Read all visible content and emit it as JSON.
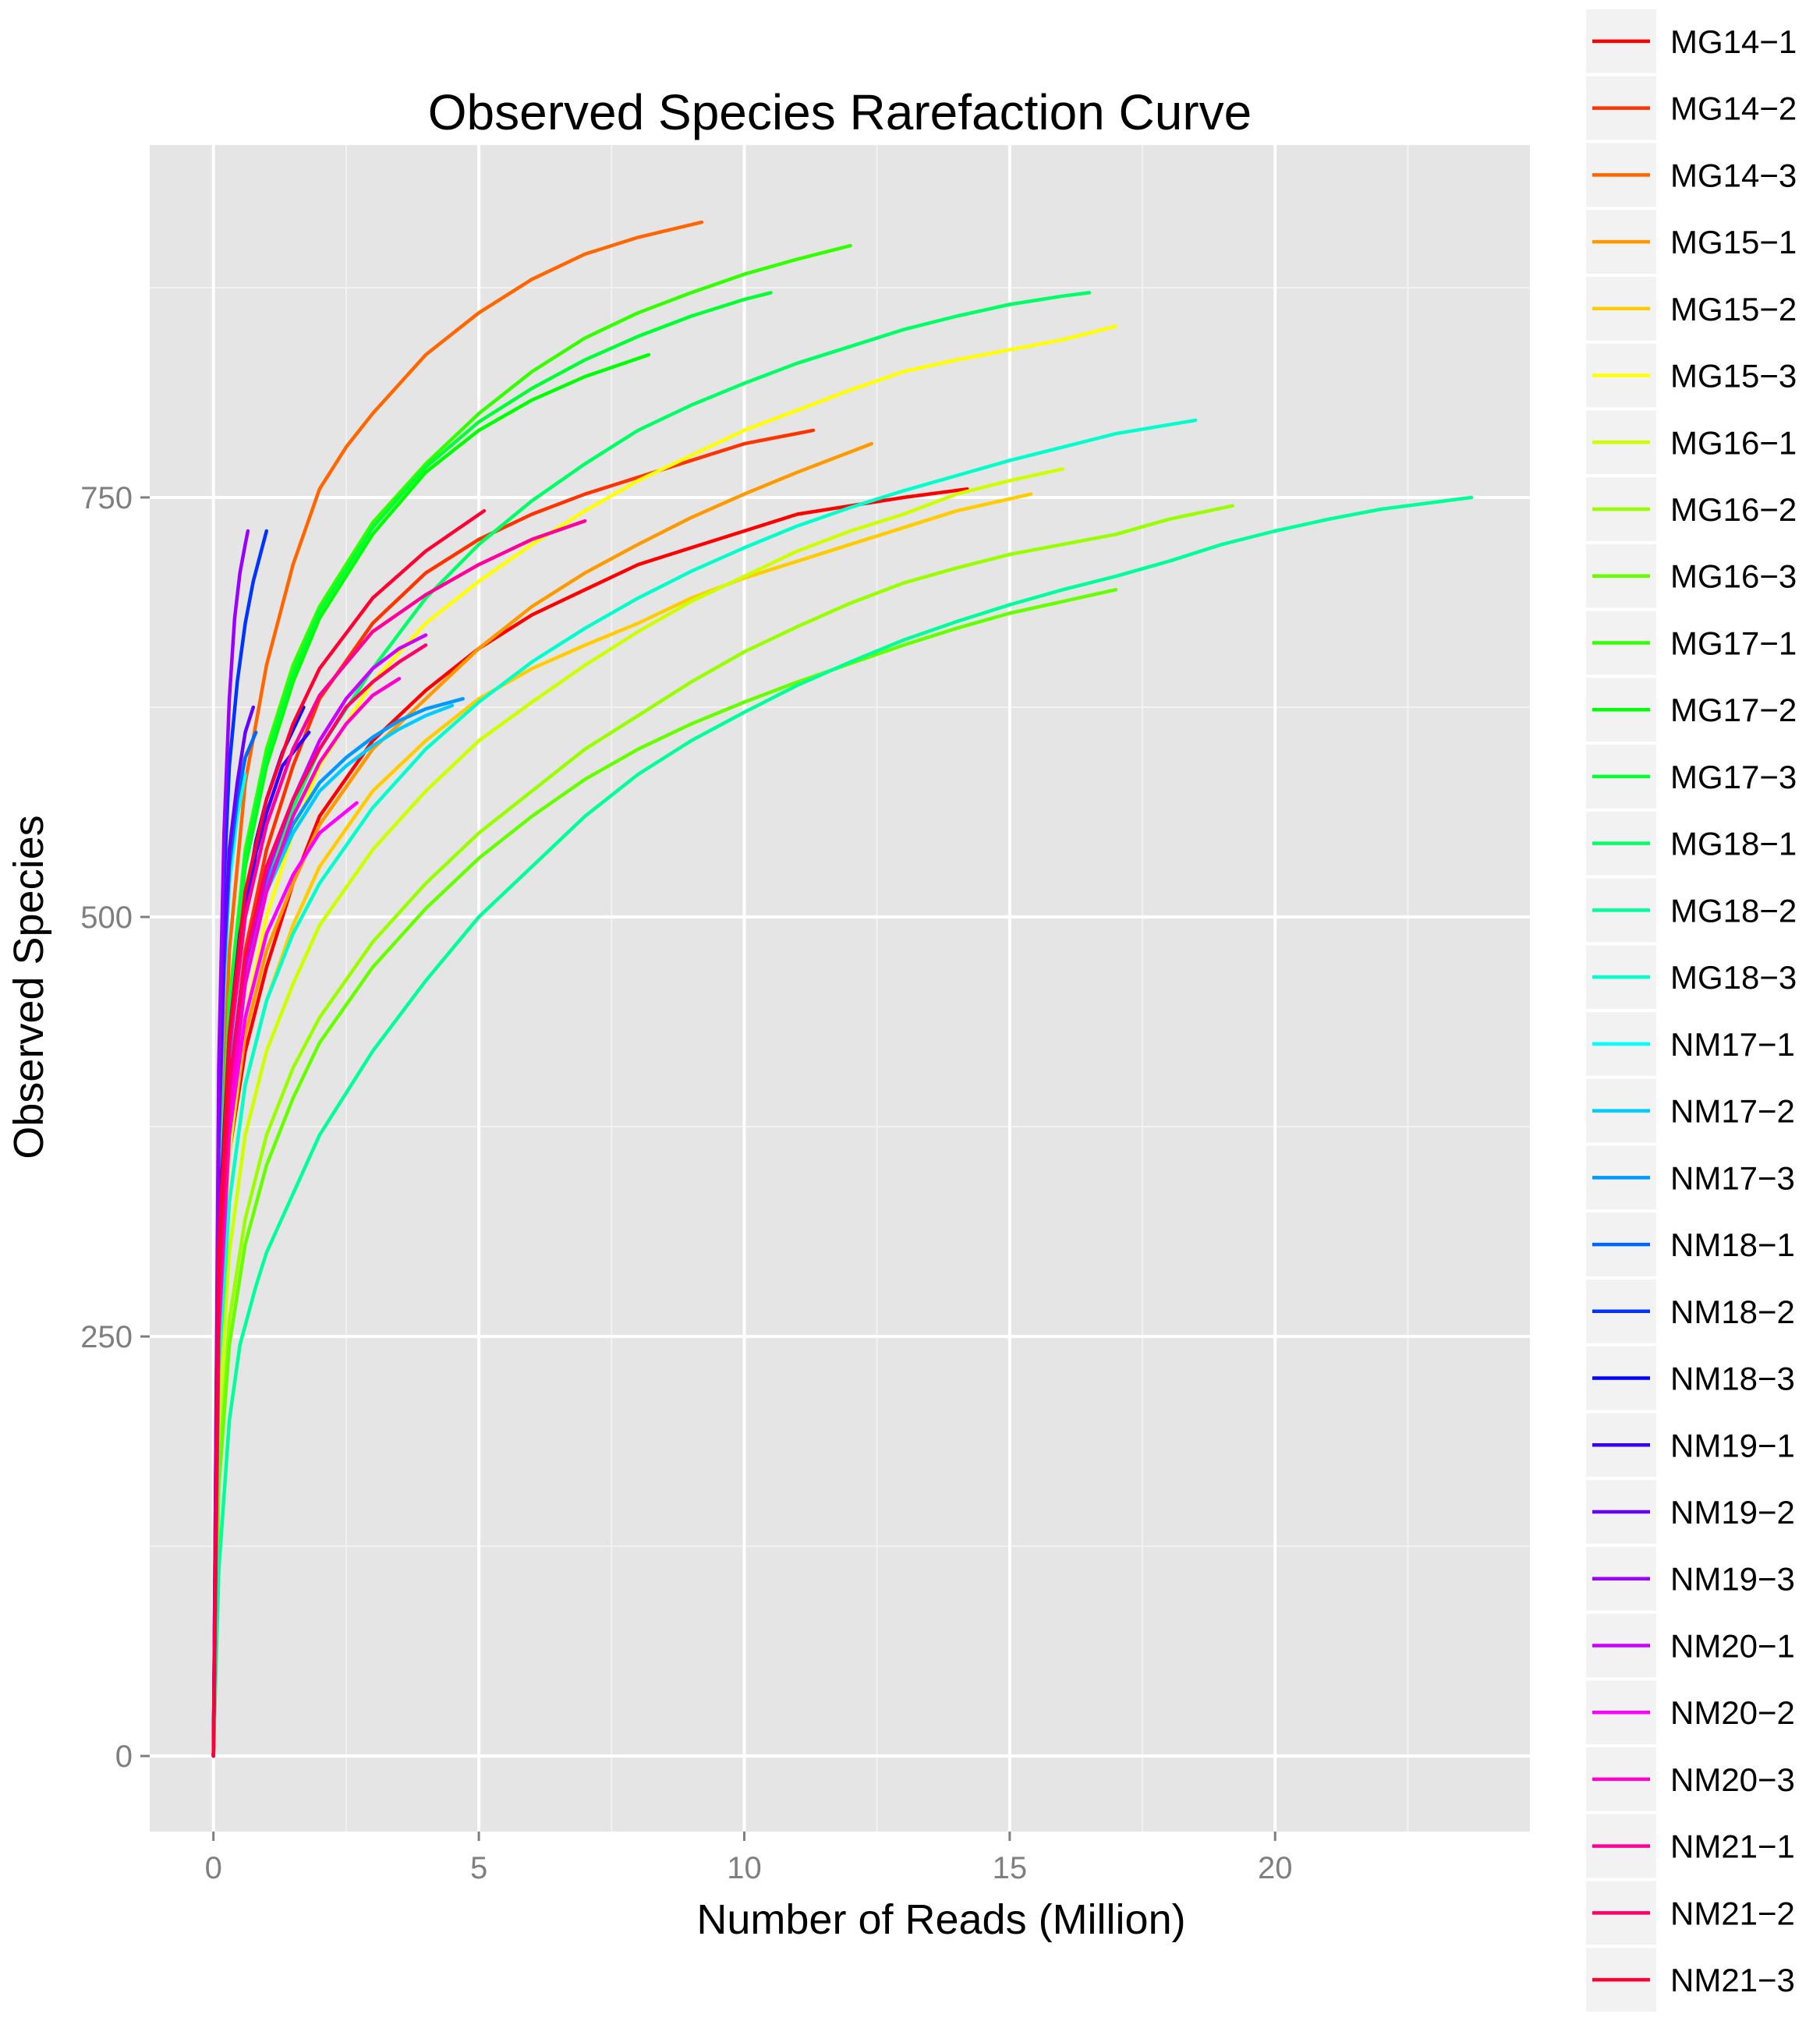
{
  "chart_data": {
    "type": "line",
    "title": "Observed Species Rarefaction Curve",
    "xlabel": "Number of Reads (Million)",
    "ylabel": "Observed Species",
    "xlim": [
      -1.2,
      24.8
    ],
    "ylim": [
      -45,
      960
    ],
    "x_ticks": [
      0,
      5,
      10,
      15,
      20
    ],
    "x_tick_labels": [
      "0",
      "5",
      "10",
      "15",
      "20"
    ],
    "y_ticks": [
      0,
      250,
      500,
      750
    ],
    "y_tick_labels": [
      "0",
      "250",
      "500",
      "750"
    ],
    "grid": true,
    "legend_position": "right",
    "series": [
      {
        "name": "MG14−1",
        "color": "#FF0000",
        "x": [
          0,
          0.1,
          0.3,
          0.6,
          1.0,
          1.5,
          2.0,
          3.0,
          4.0,
          5.0,
          6.0,
          7.0,
          8.0,
          9.0,
          10.0,
          11.0,
          12.0,
          13.0,
          14.2
        ],
        "y": [
          0,
          270,
          360,
          420,
          470,
          520,
          560,
          605,
          635,
          660,
          680,
          695,
          710,
          720,
          730,
          740,
          745,
          750,
          755
        ]
      },
      {
        "name": "MG14−2",
        "color": "#FF3300",
        "x": [
          0,
          0.1,
          0.3,
          0.6,
          1.0,
          1.5,
          2.0,
          3.0,
          4.0,
          5.0,
          6.0,
          7.0,
          8.0,
          9.0,
          10.0,
          11.3
        ],
        "y": [
          0,
          290,
          400,
          480,
          540,
          590,
          630,
          675,
          705,
          725,
          740,
          752,
          762,
          772,
          782,
          790
        ]
      },
      {
        "name": "MG14−3",
        "color": "#FF6600",
        "x": [
          0,
          0.1,
          0.3,
          0.6,
          1.0,
          1.5,
          2.0,
          2.5,
          3.0,
          4.0,
          5.0,
          6.0,
          7.0,
          8.0,
          9.2
        ],
        "y": [
          0,
          330,
          480,
          580,
          650,
          710,
          755,
          780,
          800,
          835,
          860,
          880,
          895,
          905,
          914
        ]
      },
      {
        "name": "MG15−1",
        "color": "#FF9900",
        "x": [
          0,
          0.1,
          0.3,
          0.6,
          1.0,
          1.5,
          2.0,
          3.0,
          4.0,
          5.0,
          6.0,
          7.0,
          8.0,
          9.0,
          10.0,
          11.0,
          12.4
        ],
        "y": [
          0,
          260,
          360,
          430,
          480,
          520,
          555,
          600,
          630,
          660,
          685,
          705,
          722,
          738,
          752,
          765,
          782
        ]
      },
      {
        "name": "MG15−2",
        "color": "#FFCC00",
        "x": [
          0,
          0.1,
          0.3,
          0.6,
          1.0,
          1.5,
          2.0,
          3.0,
          4.0,
          5.0,
          6.0,
          7.0,
          8.0,
          9.0,
          10.0,
          11.0,
          12.0,
          13.0,
          14.0,
          15.4
        ],
        "y": [
          0,
          230,
          330,
          400,
          450,
          495,
          530,
          575,
          605,
          630,
          648,
          662,
          675,
          690,
          702,
          712,
          722,
          732,
          742,
          752
        ]
      },
      {
        "name": "MG15−3",
        "color": "#FFFF00",
        "x": [
          0,
          0.1,
          0.3,
          0.6,
          1.0,
          1.5,
          2.0,
          3.0,
          4.0,
          5.0,
          6.0,
          7.0,
          8.0,
          9.0,
          10.0,
          11.0,
          12.0,
          13.0,
          14.0,
          15.0,
          16.0,
          17.0
        ],
        "y": [
          0,
          250,
          360,
          440,
          500,
          550,
          590,
          640,
          675,
          700,
          722,
          742,
          760,
          775,
          790,
          802,
          814,
          825,
          832,
          838,
          844,
          852
        ]
      },
      {
        "name": "MG16−1",
        "color": "#CCFF00",
        "x": [
          0,
          0.1,
          0.3,
          0.6,
          1.0,
          1.5,
          2.0,
          3.0,
          4.0,
          5.0,
          6.0,
          7.0,
          8.0,
          9.0,
          10.0,
          11.0,
          12.0,
          13.0,
          14.0,
          15.0,
          16.0
        ],
        "y": [
          0,
          200,
          300,
          370,
          420,
          460,
          495,
          540,
          575,
          605,
          628,
          650,
          670,
          688,
          703,
          718,
          730,
          740,
          752,
          760,
          767
        ]
      },
      {
        "name": "MG16−2",
        "color": "#99FF00",
        "x": [
          0,
          0.1,
          0.3,
          0.6,
          1.0,
          1.5,
          2.0,
          3.0,
          4.0,
          5.0,
          6.0,
          7.0,
          8.0,
          9.0,
          10.0,
          11.0,
          12.0,
          13.0,
          14.0,
          15.0,
          16.0,
          17.0,
          18.0,
          19.2
        ],
        "y": [
          0,
          170,
          260,
          320,
          370,
          410,
          440,
          485,
          520,
          550,
          575,
          600,
          620,
          640,
          658,
          673,
          687,
          699,
          708,
          716,
          722,
          728,
          737,
          745
        ]
      },
      {
        "name": "MG16−3",
        "color": "#66FF00",
        "x": [
          0,
          0.1,
          0.3,
          0.6,
          1.0,
          1.5,
          2.0,
          3.0,
          4.0,
          5.0,
          6.0,
          7.0,
          8.0,
          9.0,
          10.0,
          11.0,
          12.0,
          13.0,
          14.0,
          15.0,
          16.0,
          17.0
        ],
        "y": [
          0,
          160,
          245,
          305,
          352,
          392,
          425,
          470,
          505,
          535,
          560,
          582,
          600,
          615,
          628,
          640,
          651,
          662,
          672,
          681,
          688,
          695
        ]
      },
      {
        "name": "MG17−1",
        "color": "#33FF00",
        "x": [
          0,
          0.1,
          0.3,
          0.6,
          1.0,
          1.5,
          2.0,
          3.0,
          4.0,
          5.0,
          6.0,
          7.0,
          8.0,
          9.0,
          10.0,
          11.0,
          12.0
        ],
        "y": [
          0,
          310,
          450,
          540,
          600,
          650,
          685,
          735,
          770,
          800,
          825,
          845,
          860,
          872,
          883,
          892,
          900
        ]
      },
      {
        "name": "MG17−2",
        "color": "#00FF00",
        "x": [
          0,
          0.1,
          0.3,
          0.6,
          1.0,
          1.5,
          2.0,
          3.0,
          4.0,
          5.0,
          6.0,
          7.0,
          8.2
        ],
        "y": [
          0,
          300,
          440,
          530,
          590,
          640,
          678,
          728,
          765,
          790,
          808,
          822,
          835
        ]
      },
      {
        "name": "MG17−3",
        "color": "#00FF33",
        "x": [
          0,
          0.1,
          0.3,
          0.6,
          1.0,
          1.5,
          2.0,
          3.0,
          4.0,
          5.0,
          6.0,
          7.0,
          8.0,
          9.0,
          10.0,
          10.5
        ],
        "y": [
          0,
          305,
          445,
          535,
          595,
          645,
          682,
          732,
          768,
          795,
          815,
          832,
          846,
          858,
          868,
          872
        ]
      },
      {
        "name": "MG18−1",
        "color": "#00FF66",
        "x": [
          0,
          0.1,
          0.3,
          0.6,
          1.0,
          1.5,
          2.0,
          3.0,
          4.0,
          5.0,
          6.0,
          7.0,
          8.0,
          9.0,
          10.0,
          11.0,
          12.0,
          13.0,
          14.0,
          15.0,
          16.0,
          16.5
        ],
        "y": [
          0,
          260,
          380,
          460,
          520,
          565,
          600,
          648,
          690,
          722,
          748,
          770,
          790,
          805,
          818,
          830,
          840,
          850,
          858,
          865,
          870,
          872
        ]
      },
      {
        "name": "MG18−2",
        "color": "#00FF99",
        "x": [
          0,
          0.1,
          0.3,
          0.5,
          0.8,
          1.0,
          1.5,
          2.0,
          3.0,
          4.0,
          5.0,
          6.0,
          7.0,
          8.0,
          9.0,
          10.0,
          11.0,
          12.0,
          13.0,
          14.0,
          15.0,
          16.0,
          17.0,
          18.0,
          19.0,
          20.0,
          21.0,
          22.0,
          23.7
        ],
        "y": [
          0,
          110,
          200,
          245,
          280,
          300,
          335,
          370,
          420,
          462,
          500,
          530,
          560,
          585,
          605,
          622,
          638,
          652,
          665,
          676,
          686,
          695,
          703,
          712,
          722,
          730,
          737,
          743,
          750
        ]
      },
      {
        "name": "MG18−3",
        "color": "#00FFCC",
        "x": [
          0,
          0.1,
          0.3,
          0.6,
          1.0,
          1.5,
          2.0,
          3.0,
          4.0,
          5.0,
          6.0,
          7.0,
          8.0,
          9.0,
          10.0,
          11.0,
          12.0,
          13.0,
          14.0,
          15.0,
          16.0,
          17.0,
          18.5
        ],
        "y": [
          0,
          230,
          330,
          400,
          450,
          490,
          520,
          565,
          600,
          628,
          652,
          672,
          690,
          706,
          720,
          733,
          744,
          754,
          763,
          772,
          780,
          788,
          796
        ]
      },
      {
        "name": "NM17−1",
        "color": "#00FFFF",
        "x": [
          0,
          0.1,
          0.2,
          0.3,
          0.45,
          0.6
        ],
        "y": [
          0,
          350,
          460,
          520,
          560,
          585
        ]
      },
      {
        "name": "NM17−2",
        "color": "#00CCFF",
        "x": [
          0,
          0.1,
          0.3,
          0.6,
          1.0,
          1.5,
          2.0,
          2.5,
          3.0,
          3.5,
          4.0,
          4.5
        ],
        "y": [
          0,
          280,
          400,
          470,
          515,
          550,
          575,
          590,
          602,
          612,
          620,
          626
        ]
      },
      {
        "name": "NM17−3",
        "color": "#0099FF",
        "x": [
          0,
          0.1,
          0.3,
          0.6,
          1.0,
          1.5,
          2.0,
          2.5,
          3.0,
          3.5,
          4.0,
          4.7
        ],
        "y": [
          0,
          285,
          405,
          475,
          520,
          555,
          580,
          595,
          607,
          617,
          624,
          630
        ]
      },
      {
        "name": "NM18−1",
        "color": "#0066FF",
        "x": [
          0,
          0.1,
          0.2,
          0.3,
          0.45,
          0.6,
          0.8
        ],
        "y": [
          0,
          360,
          470,
          530,
          570,
          595,
          610
        ]
      },
      {
        "name": "NM18−2",
        "color": "#0033FF",
        "x": [
          0,
          0.1,
          0.2,
          0.3,
          0.45,
          0.6,
          0.75,
          0.9,
          1.0
        ],
        "y": [
          0,
          390,
          520,
          590,
          640,
          675,
          700,
          718,
          730
        ]
      },
      {
        "name": "NM18−3",
        "color": "#0000FF",
        "x": [
          0,
          0.1,
          0.3,
          0.5,
          0.8,
          1.0,
          1.3,
          1.7
        ],
        "y": [
          0,
          310,
          430,
          490,
          545,
          570,
          598,
          625
        ]
      },
      {
        "name": "NM19−1",
        "color": "#3300FF",
        "x": [
          0,
          0.1,
          0.3,
          0.5,
          0.8,
          1.0,
          1.3,
          1.8
        ],
        "y": [
          0,
          305,
          425,
          485,
          538,
          562,
          590,
          610
        ]
      },
      {
        "name": "NM19−2",
        "color": "#6600FF",
        "x": [
          0,
          0.1,
          0.2,
          0.3,
          0.45,
          0.6,
          0.75
        ],
        "y": [
          0,
          370,
          480,
          540,
          580,
          610,
          625
        ]
      },
      {
        "name": "NM19−3",
        "color": "#9900FF",
        "x": [
          0,
          0.1,
          0.2,
          0.3,
          0.4,
          0.5,
          0.6,
          0.65
        ],
        "y": [
          0,
          410,
          550,
          630,
          678,
          705,
          722,
          730
        ]
      },
      {
        "name": "NM20−1",
        "color": "#CC00FF",
        "x": [
          0,
          0.1,
          0.3,
          0.6,
          1.0,
          1.5,
          2.0,
          2.5,
          3.0,
          3.5,
          4.0
        ],
        "y": [
          0,
          270,
          390,
          470,
          525,
          570,
          605,
          630,
          648,
          660,
          668
        ]
      },
      {
        "name": "NM20−2",
        "color": "#FF00FF",
        "x": [
          0,
          0.1,
          0.3,
          0.6,
          1.0,
          1.5,
          2.0,
          2.7
        ],
        "y": [
          0,
          250,
          370,
          440,
          490,
          525,
          550,
          568
        ]
      },
      {
        "name": "NM20−3",
        "color": "#FF00CC",
        "x": [
          0,
          0.1,
          0.3,
          0.6,
          1.0,
          1.5,
          2.0,
          2.5,
          3.0,
          3.5
        ],
        "y": [
          0,
          260,
          380,
          460,
          515,
          560,
          592,
          615,
          632,
          642
        ]
      },
      {
        "name": "NM21−1",
        "color": "#FF0099",
        "x": [
          0,
          0.1,
          0.3,
          0.6,
          1.0,
          1.5,
          2.0,
          3.0,
          4.0,
          5.0,
          6.0,
          7.0
        ],
        "y": [
          0,
          290,
          420,
          500,
          555,
          600,
          632,
          670,
          692,
          710,
          725,
          736
        ]
      },
      {
        "name": "NM21−2",
        "color": "#FF0066",
        "x": [
          0,
          0.1,
          0.3,
          0.6,
          1.0,
          1.5,
          2.0,
          2.5,
          3.0,
          3.5,
          4.0
        ],
        "y": [
          0,
          275,
          400,
          475,
          530,
          570,
          600,
          625,
          640,
          652,
          662
        ]
      },
      {
        "name": "NM21−3",
        "color": "#FF0033",
        "x": [
          0,
          0.1,
          0.3,
          0.6,
          1.0,
          1.5,
          2.0,
          3.0,
          4.0,
          5.1
        ],
        "y": [
          0,
          300,
          430,
          515,
          570,
          615,
          648,
          690,
          718,
          742
        ]
      }
    ]
  }
}
